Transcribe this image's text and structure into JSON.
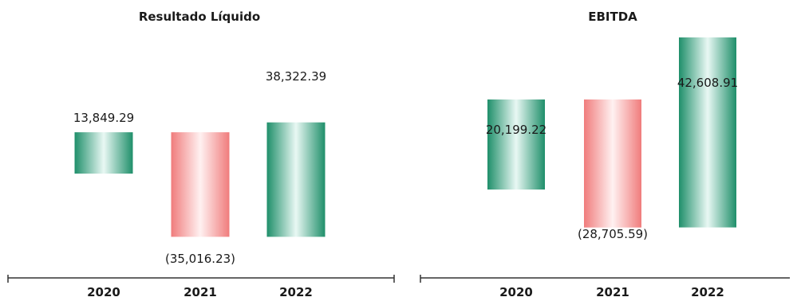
{
  "colors": {
    "positive_edge": "#1f8f6a",
    "positive_center": "#e9f8f4",
    "negative_edge": "#f07c7c",
    "negative_center": "#fff1f1",
    "axis": "#333333",
    "text": "#1a1a1a"
  },
  "chart_data": [
    {
      "type": "bar",
      "subtype": "waterfall",
      "title": "Resultado Líquido",
      "categories": [
        "2020",
        "2021",
        "2022"
      ],
      "values": [
        13849.29,
        -35016.23,
        38322.39
      ],
      "labels": [
        "13,849.29",
        "(35,016.23)",
        "38,322.39"
      ],
      "xlabel": "",
      "ylabel": "",
      "grid": false,
      "legend": "none"
    },
    {
      "type": "bar",
      "subtype": "waterfall",
      "title": "EBITDA",
      "categories": [
        "2020",
        "2021",
        "2022"
      ],
      "values": [
        20199.22,
        -28705.59,
        42608.91
      ],
      "labels": [
        "20,199.22",
        "(28,705.59)",
        "42,608.91"
      ],
      "xlabel": "",
      "ylabel": "",
      "grid": false,
      "legend": "none"
    }
  ]
}
